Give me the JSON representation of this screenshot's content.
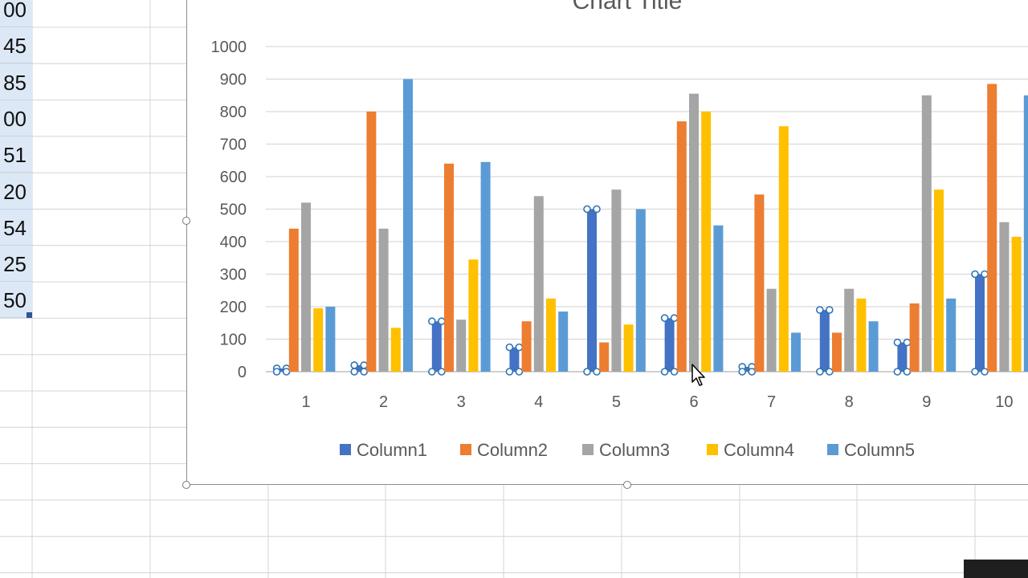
{
  "spreadsheet": {
    "visible_cells": [
      "00",
      "45",
      "85",
      "00",
      "51",
      "20",
      "54",
      "25",
      "50"
    ]
  },
  "chart_data": {
    "type": "bar",
    "title": "Chart Title",
    "categories": [
      "1",
      "2",
      "3",
      "4",
      "5",
      "6",
      "7",
      "8",
      "9",
      "10"
    ],
    "ylim": [
      0,
      1000
    ],
    "yticks": [
      0,
      100,
      200,
      300,
      400,
      500,
      600,
      700,
      800,
      900,
      1000
    ],
    "grid": true,
    "legend_position": "bottom",
    "series": [
      {
        "name": "Column1",
        "color": "#4472c4",
        "values": [
          10,
          20,
          155,
          75,
          500,
          165,
          15,
          190,
          90,
          300
        ]
      },
      {
        "name": "Column2",
        "color": "#ed7d31",
        "values": [
          440,
          800,
          640,
          155,
          90,
          770,
          545,
          120,
          210,
          885
        ]
      },
      {
        "name": "Column3",
        "color": "#a5a5a5",
        "values": [
          520,
          440,
          160,
          540,
          560,
          855,
          255,
          255,
          850,
          460
        ]
      },
      {
        "name": "Column4",
        "color": "#ffc000",
        "values": [
          195,
          135,
          345,
          225,
          145,
          800,
          755,
          225,
          560,
          415
        ]
      },
      {
        "name": "Column5",
        "color": "#5b9bd5",
        "values": [
          200,
          900,
          645,
          185,
          500,
          450,
          120,
          155,
          225,
          850
        ]
      }
    ],
    "selected_series": "Column1"
  }
}
